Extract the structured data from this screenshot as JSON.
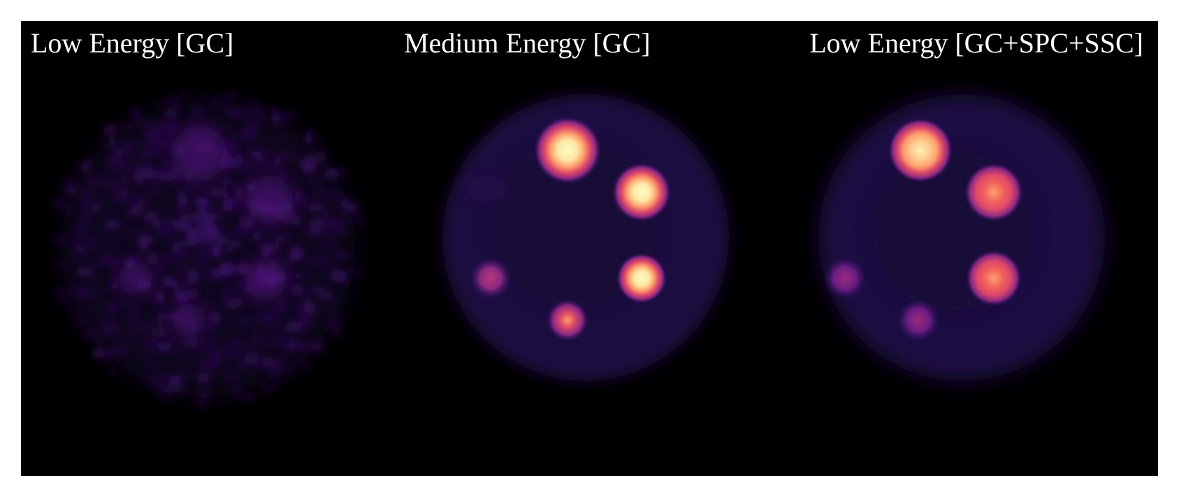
{
  "panels": [
    {
      "id": "low-gc",
      "title": "Low Energy [GC]",
      "noise": "high",
      "hot_spots": [
        {
          "pos": "top",
          "intensity": 0.2
        },
        {
          "pos": "upper-right",
          "intensity": 0.18
        },
        {
          "pos": "right",
          "intensity": 0.17
        },
        {
          "pos": "left",
          "intensity": 0.1
        },
        {
          "pos": "bottom",
          "intensity": 0.12
        }
      ]
    },
    {
      "id": "medium-gc",
      "title": "Medium Energy [GC]",
      "noise": "low",
      "hot_spots": [
        {
          "pos": "top",
          "intensity": 0.95
        },
        {
          "pos": "upper-right",
          "intensity": 1.0
        },
        {
          "pos": "right",
          "intensity": 1.0
        },
        {
          "pos": "left",
          "intensity": 0.45
        },
        {
          "pos": "bottom",
          "intensity": 0.6
        }
      ]
    },
    {
      "id": "low-gc-spc-ssc",
      "title": "Low Energy [GC+SPC+SSC]",
      "noise": "low",
      "hot_spots": [
        {
          "pos": "top",
          "intensity": 0.92
        },
        {
          "pos": "upper-right",
          "intensity": 0.7
        },
        {
          "pos": "right",
          "intensity": 0.65
        },
        {
          "pos": "left",
          "intensity": 0.35
        },
        {
          "pos": "bottom",
          "intensity": 0.4
        }
      ]
    }
  ],
  "colormap": [
    "#000004",
    "#3b0f70",
    "#8c2981",
    "#de4968",
    "#fe9f6d",
    "#fcfdbf"
  ]
}
